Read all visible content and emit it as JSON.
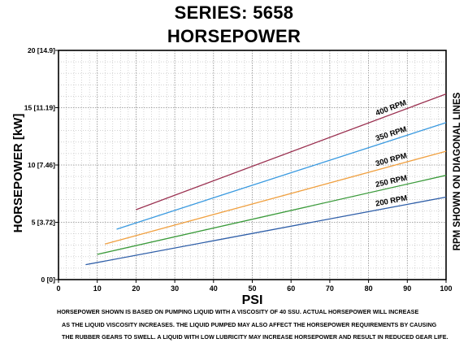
{
  "titles": {
    "line1": "SERIES: 5658",
    "line2": "HORSEPOWER"
  },
  "chart_data": {
    "type": "line",
    "xlabel": "PSI",
    "ylabel": "HORSEPOWER [kW]",
    "right_label": "RPM SHOWN ON DIAGONAL LINES",
    "xlim": [
      0,
      100
    ],
    "ylim": [
      0,
      20
    ],
    "x_ticks": [
      {
        "value": 0,
        "label": "0"
      },
      {
        "value": 10,
        "label": "10"
      },
      {
        "value": 20,
        "label": "20"
      },
      {
        "value": 30,
        "label": "30"
      },
      {
        "value": 40,
        "label": "40"
      },
      {
        "value": 50,
        "label": "50"
      },
      {
        "value": 60,
        "label": "60"
      },
      {
        "value": 70,
        "label": "70"
      },
      {
        "value": 80,
        "label": "80"
      },
      {
        "value": 90,
        "label": "90"
      },
      {
        "value": 100,
        "label": "100"
      }
    ],
    "y_ticks": [
      {
        "value": 0,
        "label": "0 [0]"
      },
      {
        "value": 5,
        "label": "5 [3.72]"
      },
      {
        "value": 10,
        "label": "10 [7.46]"
      },
      {
        "value": 15,
        "label": "15 [11.19]"
      },
      {
        "value": 20,
        "label": "20 [14.9]"
      }
    ],
    "grid": true,
    "series": [
      {
        "name": "200 RPM",
        "color": "#2e5ea8",
        "x": [
          7,
          100
        ],
        "y": [
          1.3,
          7.2
        ]
      },
      {
        "name": "250 RPM",
        "color": "#3a9a3a",
        "x": [
          10,
          100
        ],
        "y": [
          2.2,
          9.1
        ]
      },
      {
        "name": "300 RPM",
        "color": "#f0a040",
        "x": [
          12,
          100
        ],
        "y": [
          3.1,
          11.2
        ]
      },
      {
        "name": "350 RPM",
        "color": "#3a9ae0",
        "x": [
          15,
          100
        ],
        "y": [
          4.4,
          13.7
        ]
      },
      {
        "name": "400 RPM",
        "color": "#9a3050",
        "x": [
          20,
          100
        ],
        "y": [
          6.1,
          16.2
        ]
      }
    ]
  },
  "notes": {
    "line1": "HORSEPOWER SHOWN IS BASED ON PUMPING LIQUID WITH A VISCOSITY OF 40 SSU.  ACTUAL HORSEPOWER WILL INCREASE",
    "line2": "AS THE LIQUID VISCOSITY INCREASES.  THE LIQUID PUMPED MAY ALSO AFFECT THE HORSEPOWER REQUIREMENTS BY CAUSING",
    "line3": "THE RUBBER GEARS TO SWELL.  A LIQUID WITH LOW LUBRICITY MAY INCREASE HORSEPOWER AND RESULT IN REDUCED GEAR LIFE."
  }
}
